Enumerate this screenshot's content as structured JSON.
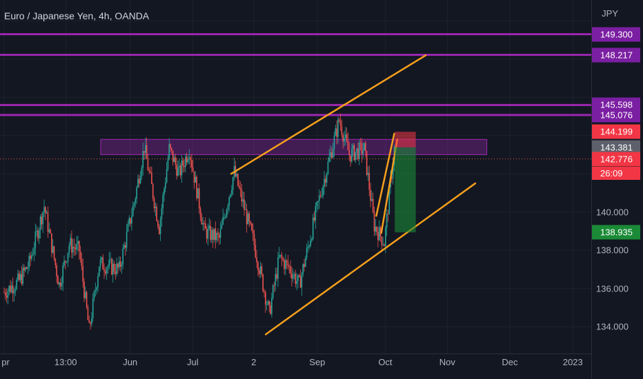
{
  "title": "Euro / Japanese Yen, 4h, OANDA",
  "currency": "JPY",
  "countdown": "26:09",
  "colors": {
    "background": "#131722",
    "up": "#26a69a",
    "down": "#ef5350",
    "resistance": "#9c27b0",
    "trendline": "#f7a01c",
    "stop_zone": "#f23645",
    "target_zone": "#1b8a37"
  },
  "price_tags": [
    {
      "label": "149.300",
      "value": 149.3,
      "style": "purple"
    },
    {
      "label": "148.217",
      "value": 148.217,
      "style": "purple"
    },
    {
      "label": "145.598",
      "value": 145.598,
      "style": "purple"
    },
    {
      "label": "145.076",
      "value": 145.076,
      "style": "purple"
    },
    {
      "label": "144.199",
      "value": 144.199,
      "style": "red"
    },
    {
      "label": "143.381",
      "value": 143.381,
      "style": "gray"
    },
    {
      "label": "142.776",
      "value": 142.776,
      "style": "red"
    },
    {
      "label": "138.935",
      "value": 138.935,
      "style": "green"
    }
  ],
  "chart_data": {
    "type": "candlestick",
    "title": "Euro / Japanese Yen, 4h, OANDA",
    "ylabel": "JPY",
    "ylim": [
      132.6,
      150.8
    ],
    "y_ticks": [
      "140.000",
      "138.000",
      "136.000",
      "134.000"
    ],
    "y_tick_values": [
      140,
      138,
      136,
      134
    ],
    "x_ticks": [
      "pr",
      "13:00",
      "Jun",
      "Jul",
      "2",
      "Sep",
      "Oct",
      "Nov",
      "Dec",
      "2023"
    ],
    "x_tick_index": [
      0,
      12.3,
      25.2,
      37.7,
      49.9,
      62.6,
      76.2,
      88.6,
      101.1,
      113.7
    ],
    "close_path": [
      {
        "i": 0,
        "p": 135.8
      },
      {
        "i": 3,
        "p": 136.4
      },
      {
        "i": 5,
        "p": 137.3
      },
      {
        "i": 8,
        "p": 140.3
      },
      {
        "i": 11,
        "p": 136.2
      },
      {
        "i": 13,
        "p": 138.3
      },
      {
        "i": 15,
        "p": 138.0
      },
      {
        "i": 17,
        "p": 133.8
      },
      {
        "i": 19,
        "p": 137.3
      },
      {
        "i": 23,
        "p": 137.0
      },
      {
        "i": 26,
        "p": 140.5
      },
      {
        "i": 28,
        "p": 143.4
      },
      {
        "i": 31,
        "p": 139.2
      },
      {
        "i": 33,
        "p": 143.3
      },
      {
        "i": 35,
        "p": 142.0
      },
      {
        "i": 37,
        "p": 143.3
      },
      {
        "i": 40,
        "p": 139.0
      },
      {
        "i": 43,
        "p": 138.6
      },
      {
        "i": 46,
        "p": 142.1
      },
      {
        "i": 50,
        "p": 138.3
      },
      {
        "i": 53,
        "p": 134.7
      },
      {
        "i": 55,
        "p": 137.6
      },
      {
        "i": 57,
        "p": 137.1
      },
      {
        "i": 59,
        "p": 136.2
      },
      {
        "i": 63,
        "p": 140.7
      },
      {
        "i": 67,
        "p": 144.8
      },
      {
        "i": 69,
        "p": 143.0
      },
      {
        "i": 72,
        "p": 143.3
      },
      {
        "i": 74,
        "p": 139.3
      },
      {
        "i": 76,
        "p": 138.4
      },
      {
        "i": 78,
        "p": 143.3
      }
    ],
    "horizontal_levels": [
      149.3,
      148.217,
      145.598,
      145.076
    ],
    "zone": {
      "low": 143.0,
      "high": 143.8,
      "from_index": 19.3,
      "to_index": 96.5
    },
    "trendlines": [
      {
        "from": [
          45.4,
          142.0
        ],
        "to": [
          84.3,
          148.2
        ]
      },
      {
        "from": [
          52.3,
          133.6
        ],
        "to": [
          94.2,
          141.5
        ]
      },
      {
        "from": [
          74.4,
          139.8
        ],
        "to": [
          78.0,
          144.1
        ]
      },
      {
        "from": [
          75.4,
          138.9
        ],
        "to": [
          78.6,
          143.8
        ]
      }
    ],
    "position": {
      "type": "short",
      "entry": 143.381,
      "stop": 144.199,
      "target": 138.935,
      "from_index": 78.1,
      "to_index": 82.3
    }
  }
}
